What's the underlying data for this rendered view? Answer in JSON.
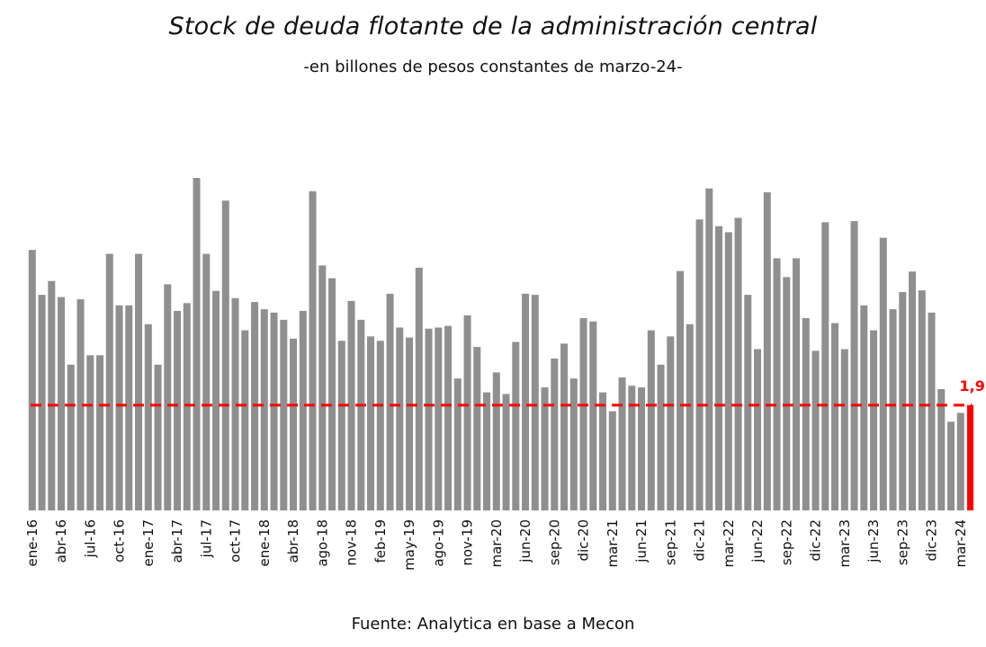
{
  "chart_data": {
    "type": "bar",
    "title": "Stock de deuda flotante de la administración central",
    "subtitle": "-en billones de pesos constantes de marzo-24-",
    "source": "Fuente: Analytica en base a Mecon",
    "xlabel": "",
    "ylabel": "",
    "grid": false,
    "ylim": [
      0,
      6
    ],
    "tick_labels": [
      "ene-16",
      "abr-16",
      "jul-16",
      "oct-16",
      "ene-17",
      "abr-17",
      "jul-17",
      "oct-17",
      "ene-18",
      "abr-18",
      "ago-18",
      "nov-18",
      "feb-19",
      "may-19",
      "ago-19",
      "nov-19",
      "mar-20",
      "jun-20",
      "sep-20",
      "dic-20",
      "mar-21",
      "jun-21",
      "sep-21",
      "dic-21",
      "mar-22",
      "jun-22",
      "sep-22",
      "dic-22",
      "mar-23",
      "jun-23",
      "sep-23",
      "dic-23",
      "mar-24"
    ],
    "tick_indices": [
      0,
      3,
      6,
      9,
      12,
      15,
      18,
      21,
      24,
      27,
      30,
      33,
      36,
      39,
      42,
      45,
      48,
      51,
      54,
      57,
      60,
      63,
      66,
      69,
      72,
      75,
      78,
      81,
      84,
      87,
      90,
      93,
      96
    ],
    "values": [
      4.7,
      3.89,
      4.14,
      3.85,
      2.63,
      3.81,
      2.8,
      2.8,
      4.63,
      3.7,
      3.7,
      4.63,
      3.36,
      2.63,
      4.08,
      3.6,
      3.74,
      6.0,
      4.63,
      3.96,
      5.59,
      3.83,
      3.25,
      3.76,
      3.63,
      3.57,
      3.44,
      3.1,
      3.6,
      5.76,
      4.42,
      4.19,
      3.06,
      3.78,
      3.44,
      3.14,
      3.06,
      3.91,
      3.3,
      3.12,
      4.38,
      3.28,
      3.3,
      3.33,
      2.38,
      3.52,
      2.95,
      2.13,
      2.49,
      2.1,
      3.04,
      3.91,
      3.89,
      2.22,
      2.74,
      3.01,
      2.38,
      3.47,
      3.41,
      2.13,
      1.79,
      2.4,
      2.25,
      2.22,
      3.25,
      2.63,
      3.14,
      4.32,
      3.36,
      5.25,
      5.81,
      5.13,
      5.02,
      5.28,
      3.89,
      2.91,
      5.74,
      4.55,
      4.21,
      4.55,
      3.47,
      2.88,
      5.2,
      3.38,
      2.91,
      5.22,
      3.7,
      3.25,
      4.92,
      3.63,
      3.94,
      4.31,
      3.97,
      3.57,
      2.19,
      1.6,
      1.76,
      1.9
    ],
    "highlight": {
      "index": 97,
      "value": 1.9,
      "label": "1,9",
      "color": "#ff0000"
    },
    "reference_line": {
      "value": 1.9,
      "style": "dashed",
      "color": "#ff0000"
    },
    "colors": {
      "bar": "#8f8f8f",
      "highlight": "#ff0000"
    }
  }
}
